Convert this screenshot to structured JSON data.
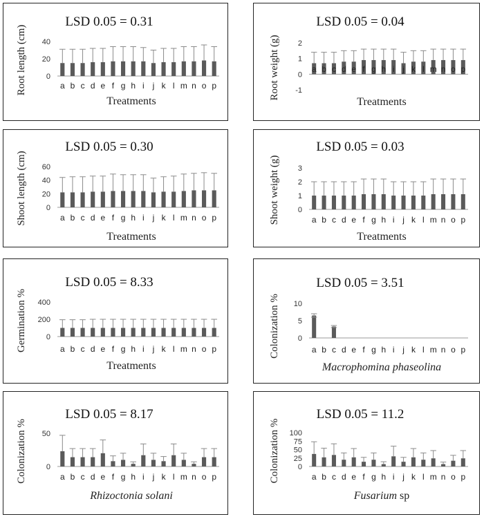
{
  "chart_data": [
    {
      "type": "bar",
      "title": "LSD 0.05 = 0.31",
      "ylabel": "Root length (cm)",
      "xlabel": "Treatments",
      "categories": [
        "a",
        "b",
        "c",
        "d",
        "e",
        "f",
        "g",
        "h",
        "i",
        "j",
        "k",
        "l",
        "m",
        "n",
        "o",
        "p"
      ],
      "values": [
        15,
        15,
        15,
        16,
        16,
        17,
        17,
        17,
        17,
        15,
        16,
        16,
        17,
        17,
        18,
        17
      ],
      "errors": [
        16,
        16,
        16,
        16,
        16,
        17,
        17,
        17,
        16,
        15,
        16,
        16,
        17,
        17,
        18,
        17
      ],
      "yticks": [
        0,
        20,
        40
      ],
      "ylim": [
        0,
        40
      ],
      "grid": false,
      "color": "#5a5a5a"
    },
    {
      "type": "bar",
      "title": "LSD 0.05 = 0.04",
      "ylabel": "Root weight (g)",
      "xlabel": "Treatments",
      "categories": [
        "a",
        "b",
        "c",
        "d",
        "e",
        "f",
        "g",
        "h",
        "i",
        "j",
        "k",
        "l",
        "m",
        "n",
        "o",
        "p"
      ],
      "values": [
        0.7,
        0.7,
        0.7,
        0.8,
        0.8,
        0.9,
        0.9,
        0.9,
        0.9,
        0.7,
        0.8,
        0.8,
        0.9,
        0.9,
        0.9,
        0.9
      ],
      "errors": [
        0.7,
        0.7,
        0.7,
        0.7,
        0.7,
        0.7,
        0.7,
        0.7,
        0.7,
        0.7,
        0.7,
        0.7,
        0.7,
        0.7,
        0.7,
        0.7
      ],
      "yticks": [
        -1,
        0,
        1,
        2
      ],
      "ylim": [
        -1,
        2
      ],
      "grid": false,
      "color": "#5a5a5a"
    },
    {
      "type": "bar",
      "title": "LSD 0.05 = 0.30",
      "ylabel": "Shoot length (cm)",
      "xlabel": "Treatments",
      "categories": [
        "a",
        "b",
        "c",
        "d",
        "e",
        "f",
        "g",
        "h",
        "i",
        "j",
        "k",
        "l",
        "m",
        "n",
        "o",
        "p"
      ],
      "values": [
        22,
        22,
        22,
        23,
        23,
        24,
        24,
        24,
        24,
        22,
        23,
        23,
        24,
        25,
        25,
        25
      ],
      "errors": [
        22,
        23,
        23,
        23,
        23,
        25,
        24,
        24,
        24,
        21,
        22,
        23,
        25,
        25,
        26,
        25
      ],
      "yticks": [
        0,
        20,
        40,
        60
      ],
      "ylim": [
        0,
        60
      ],
      "grid": false,
      "color": "#5a5a5a"
    },
    {
      "type": "bar",
      "title": "LSD 0.05 = 0.03",
      "ylabel": "Shoot weight (g)",
      "xlabel": "Treatments",
      "categories": [
        "a",
        "b",
        "c",
        "d",
        "e",
        "f",
        "g",
        "h",
        "i",
        "j",
        "k",
        "l",
        "m",
        "n",
        "o",
        "p"
      ],
      "values": [
        1.0,
        1.0,
        1.0,
        1.0,
        1.0,
        1.1,
        1.1,
        1.1,
        1.0,
        1.0,
        1.0,
        1.0,
        1.1,
        1.1,
        1.1,
        1.1
      ],
      "errors": [
        1.0,
        1.0,
        1.0,
        1.0,
        1.0,
        1.1,
        1.1,
        1.1,
        1.0,
        1.0,
        1.0,
        1.0,
        1.1,
        1.1,
        1.1,
        1.1
      ],
      "yticks": [
        0,
        1,
        2,
        3
      ],
      "ylim": [
        0,
        3
      ],
      "grid": false,
      "color": "#5a5a5a"
    },
    {
      "type": "bar",
      "title": "LSD 0.05 = 8.33",
      "ylabel": "Germination %",
      "xlabel": "Treatments",
      "categories": [
        "a",
        "b",
        "c",
        "d",
        "e",
        "f",
        "g",
        "h",
        "i",
        "j",
        "k",
        "l",
        "m",
        "n",
        "o",
        "p"
      ],
      "values": [
        100,
        100,
        100,
        100,
        100,
        100,
        100,
        100,
        100,
        100,
        100,
        100,
        100,
        100,
        100,
        100
      ],
      "errors": [
        95,
        95,
        95,
        100,
        100,
        100,
        100,
        100,
        100,
        100,
        100,
        100,
        100,
        100,
        100,
        100
      ],
      "yticks": [
        0,
        200,
        400
      ],
      "ylim": [
        0,
        400
      ],
      "grid": false,
      "color": "#5a5a5a"
    },
    {
      "type": "bar",
      "title": "LSD 0.05 = 3.51",
      "ylabel": "Colonization %",
      "xlabel": "Macrophomina phaseolina",
      "xlabel_italic": true,
      "categories": [
        "a",
        "b",
        "c",
        "d",
        "e",
        "f",
        "g",
        "h",
        "i",
        "j",
        "k",
        "l",
        "m",
        "n",
        "o",
        "p"
      ],
      "values": [
        6.5,
        0,
        3.3,
        0,
        0,
        0,
        0,
        0,
        0,
        0,
        0,
        0,
        0,
        0,
        0,
        0
      ],
      "errors": [
        0.5,
        0,
        0.3,
        0,
        0,
        0,
        0,
        0,
        0,
        0,
        0,
        0,
        0,
        0,
        0,
        0
      ],
      "yticks": [
        0,
        5,
        10
      ],
      "ylim": [
        0,
        10
      ],
      "grid": false,
      "color": "#5a5a5a"
    },
    {
      "type": "bar",
      "title": "LSD 0.05 = 8.17",
      "ylabel": "Colonization %",
      "xlabel": "Rhizoctonia solani",
      "xlabel_italic": true,
      "categories": [
        "a",
        "b",
        "c",
        "d",
        "e",
        "f",
        "g",
        "h",
        "i",
        "j",
        "k",
        "l",
        "m",
        "n",
        "o",
        "p"
      ],
      "values": [
        23,
        14,
        14,
        14,
        20,
        8,
        10,
        4,
        17,
        10,
        8,
        17,
        10,
        4,
        14,
        14
      ],
      "errors": [
        24,
        13,
        13,
        13,
        20,
        8,
        10,
        3,
        17,
        10,
        7,
        17,
        10,
        3,
        13,
        13
      ],
      "yticks": [
        0,
        50
      ],
      "ylim": [
        0,
        50
      ],
      "grid": false,
      "color": "#5a5a5a"
    },
    {
      "type": "bar",
      "title": "LSD 0.05 = 11.2",
      "ylabel": "Colonization %",
      "xlabel": "sp",
      "xlabel_italic_part": "Fusarium",
      "categories": [
        "a",
        "b",
        "c",
        "d",
        "e",
        "f",
        "g",
        "h",
        "i",
        "j",
        "k",
        "l",
        "m",
        "n",
        "o",
        "p"
      ],
      "values": [
        37,
        27,
        34,
        20,
        27,
        14,
        20,
        7,
        30,
        14,
        27,
        20,
        24,
        7,
        17,
        24
      ],
      "errors": [
        36,
        27,
        33,
        20,
        26,
        13,
        20,
        7,
        30,
        13,
        26,
        20,
        23,
        6,
        16,
        23
      ],
      "yticks": [
        0,
        25,
        50,
        75,
        100
      ],
      "ylim": [
        0,
        100
      ],
      "grid": false,
      "color": "#5a5a5a"
    }
  ]
}
